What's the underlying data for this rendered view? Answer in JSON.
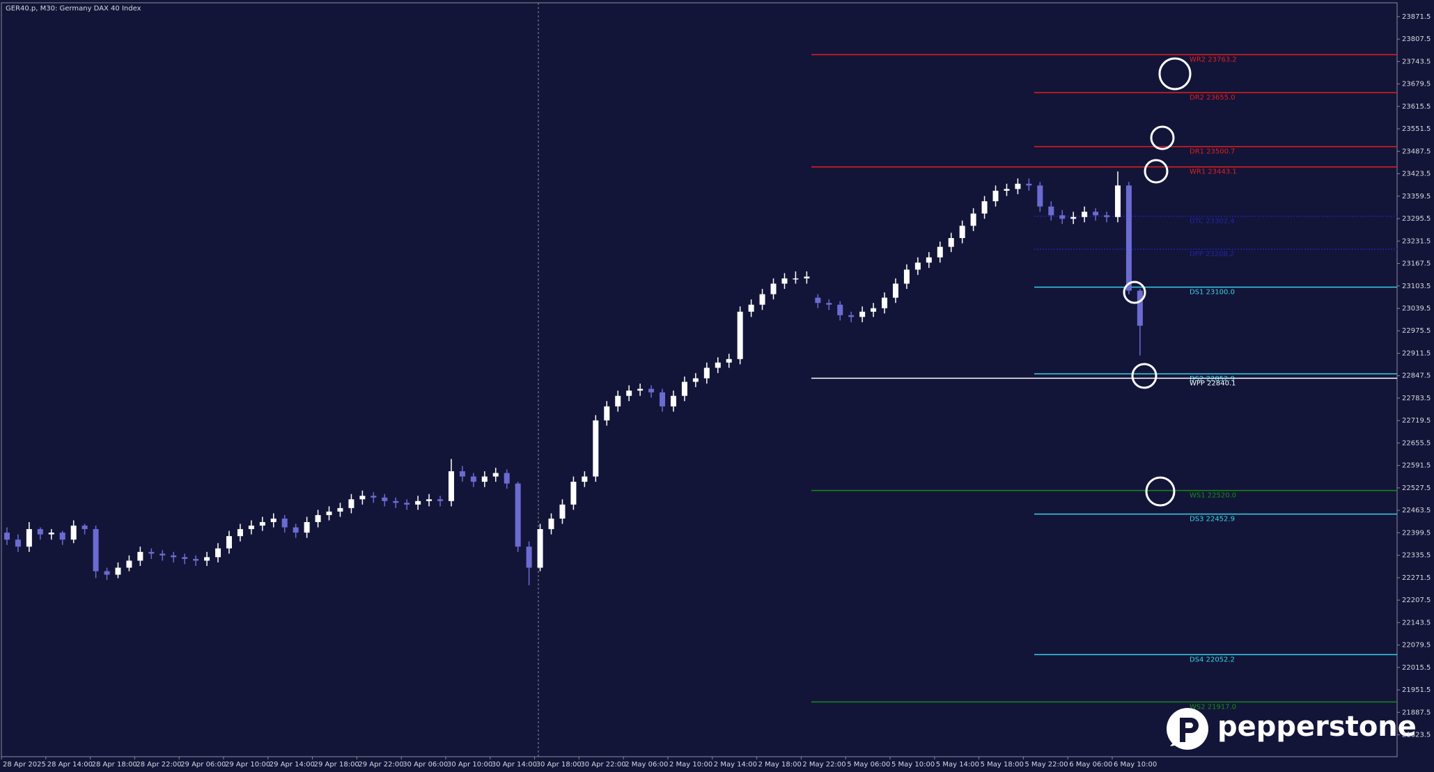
{
  "chart_data": {
    "type": "candlestick",
    "title": "GER40.p, M30:  Germany DAX 40 Index",
    "categories": [
      "28 Apr 2025",
      null,
      null,
      null,
      "28 Apr 14:00",
      null,
      null,
      null,
      "28 Apr 18:00",
      null,
      null,
      null,
      "28 Apr 22:00",
      null,
      null,
      null,
      "29 Apr 06:00",
      null,
      null,
      null,
      "29 Apr 10:00",
      null,
      null,
      null,
      "29 Apr 14:00",
      null,
      null,
      null,
      "29 Apr 18:00",
      null,
      null,
      null,
      "29 Apr 22:00",
      null,
      null,
      null,
      "30 Apr 06:00",
      null,
      null,
      null,
      "30 Apr 10:00",
      null,
      null,
      null,
      "30 Apr 14:00",
      null,
      null,
      null,
      "30 Apr 18:00",
      null,
      null,
      null,
      "30 Apr 22:00",
      null,
      null,
      null,
      "2 May 06:00",
      null,
      null,
      null,
      "2 May 10:00",
      null,
      null,
      null,
      "2 May 14:00",
      null,
      null,
      null,
      "2 May 18:00",
      null,
      null,
      null,
      "2 May 22:00",
      null,
      null,
      null,
      "5 May 06:00",
      null,
      null,
      null,
      "5 May 10:00",
      null,
      null,
      null,
      "5 May 14:00",
      null,
      null,
      null,
      "5 May 18:00",
      null,
      null,
      null,
      "5 May 22:00",
      null,
      null,
      null,
      "6 May 06:00",
      null,
      null,
      null,
      "6 May 10:00",
      null,
      null
    ],
    "open": [
      22400,
      22380,
      22360,
      22410,
      22395,
      22400,
      22380,
      22420,
      22410,
      22290,
      22280,
      22300,
      22320,
      22345,
      22340,
      22335,
      22330,
      22325,
      22320,
      22330,
      22355,
      22390,
      22410,
      22420,
      22430,
      22440,
      22415,
      22400,
      22430,
      22450,
      22460,
      22470,
      22495,
      22505,
      22500,
      22490,
      22485,
      22480,
      22490,
      22495,
      22490,
      22575,
      22560,
      22545,
      22560,
      22570,
      22540,
      22360,
      22300,
      22410,
      22440,
      22480,
      22545,
      22560,
      22720,
      22760,
      22790,
      22805,
      22810,
      22800,
      22760,
      22790,
      22830,
      22840,
      22870,
      22885,
      22895,
      23030,
      23050,
      23080,
      23110,
      23125,
      23125,
      23070,
      23055,
      23050,
      23020,
      23015,
      23030,
      23040,
      23070,
      23110,
      23150,
      23170,
      23185,
      23215,
      23240,
      23275,
      23310,
      23345,
      23375,
      23380,
      23395,
      23390,
      23330,
      23305,
      23295,
      23300,
      23315,
      23305,
      23300,
      23390,
      23090
    ],
    "high": [
      22415,
      22395,
      22430,
      22415,
      22410,
      22405,
      22435,
      22425,
      22420,
      22300,
      22315,
      22335,
      22360,
      22355,
      22350,
      22345,
      22340,
      22335,
      22345,
      22370,
      22405,
      22425,
      22435,
      22445,
      22455,
      22450,
      22425,
      22445,
      22465,
      22475,
      22485,
      22510,
      22520,
      22515,
      22510,
      22500,
      22495,
      22505,
      22510,
      22505,
      22610,
      22590,
      22570,
      22575,
      22585,
      22580,
      22545,
      22375,
      22425,
      22455,
      22495,
      22560,
      22575,
      22735,
      22775,
      22805,
      22820,
      22825,
      22820,
      22810,
      22805,
      22845,
      22855,
      22885,
      22900,
      22910,
      23045,
      23065,
      23095,
      23125,
      23140,
      23145,
      23145,
      23080,
      23065,
      23060,
      23030,
      23045,
      23055,
      23085,
      23125,
      23165,
      23185,
      23200,
      23230,
      23255,
      23290,
      23325,
      23360,
      23390,
      23395,
      23410,
      23410,
      23400,
      23345,
      23320,
      23315,
      23330,
      23325,
      23315,
      23430,
      23400,
      23095
    ],
    "low": [
      22365,
      22345,
      22345,
      22380,
      22380,
      22365,
      22370,
      22395,
      22270,
      22265,
      22270,
      22290,
      22305,
      22325,
      22320,
      22315,
      22310,
      22305,
      22305,
      22315,
      22340,
      22375,
      22395,
      22405,
      22415,
      22400,
      22385,
      22385,
      22415,
      22435,
      22445,
      22455,
      22480,
      22485,
      22475,
      22470,
      22465,
      22465,
      22475,
      22475,
      22475,
      22545,
      22530,
      22530,
      22545,
      22525,
      22345,
      22250,
      22290,
      22395,
      22425,
      22465,
      22530,
      22545,
      22705,
      22745,
      22775,
      22790,
      22785,
      22745,
      22745,
      22775,
      22815,
      22825,
      22855,
      22870,
      22880,
      23015,
      23035,
      23065,
      23095,
      23110,
      23110,
      23040,
      23035,
      23005,
      23000,
      23000,
      23015,
      23025,
      23055,
      23095,
      23135,
      23155,
      23170,
      23200,
      23225,
      23260,
      23295,
      23330,
      23360,
      23365,
      23375,
      23315,
      23290,
      23280,
      23280,
      23285,
      23290,
      23285,
      23285,
      23080,
      22905
    ],
    "close": [
      22380,
      22360,
      22410,
      22395,
      22400,
      22380,
      22420,
      22410,
      22290,
      22280,
      22300,
      22320,
      22345,
      22340,
      22335,
      22330,
      22325,
      22320,
      22330,
      22355,
      22390,
      22410,
      22420,
      22430,
      22440,
      22415,
      22400,
      22430,
      22450,
      22460,
      22470,
      22495,
      22505,
      22500,
      22490,
      22485,
      22480,
      22490,
      22495,
      22490,
      22575,
      22560,
      22545,
      22560,
      22570,
      22540,
      22360,
      22300,
      22410,
      22440,
      22480,
      22545,
      22560,
      22720,
      22760,
      22790,
      22805,
      22810,
      22800,
      22760,
      22790,
      22830,
      22840,
      22870,
      22885,
      22895,
      23030,
      23050,
      23080,
      23110,
      23125,
      23125,
      23130,
      23055,
      23050,
      23020,
      23015,
      23030,
      23040,
      23070,
      23110,
      23150,
      23170,
      23185,
      23215,
      23240,
      23275,
      23310,
      23345,
      23375,
      23380,
      23395,
      23390,
      23330,
      23305,
      23295,
      23300,
      23315,
      23305,
      23300,
      23390,
      23090,
      22990
    ],
    "up_color": "#ffffff",
    "down_color": "#6b6bd2",
    "ylim": [
      21761,
      23911
    ],
    "yticks": [
      23871.5,
      23807.5,
      23743.5,
      23679.5,
      23615.5,
      23551.5,
      23487.5,
      23423.5,
      23359.5,
      23295.5,
      23231.5,
      23167.5,
      23103.5,
      23039.5,
      22975.5,
      22911.5,
      22847.5,
      22783.5,
      22719.5,
      22655.5,
      22591.5,
      22527.5,
      22463.5,
      22399.5,
      22335.5,
      22271.5,
      22207.5,
      22143.5,
      22079.5,
      22015.5,
      21951.5,
      21887.5,
      21823.5
    ],
    "levels": [
      {
        "label": "WR2 23763.2",
        "value": 23763.2,
        "color": "#e31e1e"
      },
      {
        "label": "DR2 23655.0",
        "value": 23655.0,
        "color": "#e31e1e"
      },
      {
        "label": "DR1 23500.7",
        "value": 23500.7,
        "color": "#e31e1e"
      },
      {
        "label": "WR1 23443.1",
        "value": 23443.1,
        "color": "#e31e1e"
      },
      {
        "label": "DTC 23302.4",
        "value": 23302.4,
        "color": "#1f23a8"
      },
      {
        "label": "DPP 23208.2",
        "value": 23208.2,
        "color": "#1f23a8"
      },
      {
        "label": "DS1 23100.0",
        "value": 23100.0,
        "color": "#35d4e6"
      },
      {
        "label": "DS2 22852.9",
        "value": 22852.9,
        "color": "#35d4e6"
      },
      {
        "label": "WPP 22840.1",
        "value": 22840.1,
        "color": "#ffffff"
      },
      {
        "label": "WS1 22520.0",
        "value": 22520.0,
        "color": "#168c16"
      },
      {
        "label": "DS3 22452.9",
        "value": 22452.9,
        "color": "#35d4e6"
      },
      {
        "label": "DS4 22052.2",
        "value": 22052.2,
        "color": "#35d4e6"
      },
      {
        "label": "WS2 21917.0",
        "value": 21917.0,
        "color": "#168c16"
      }
    ]
  },
  "brand": "pepperstone"
}
